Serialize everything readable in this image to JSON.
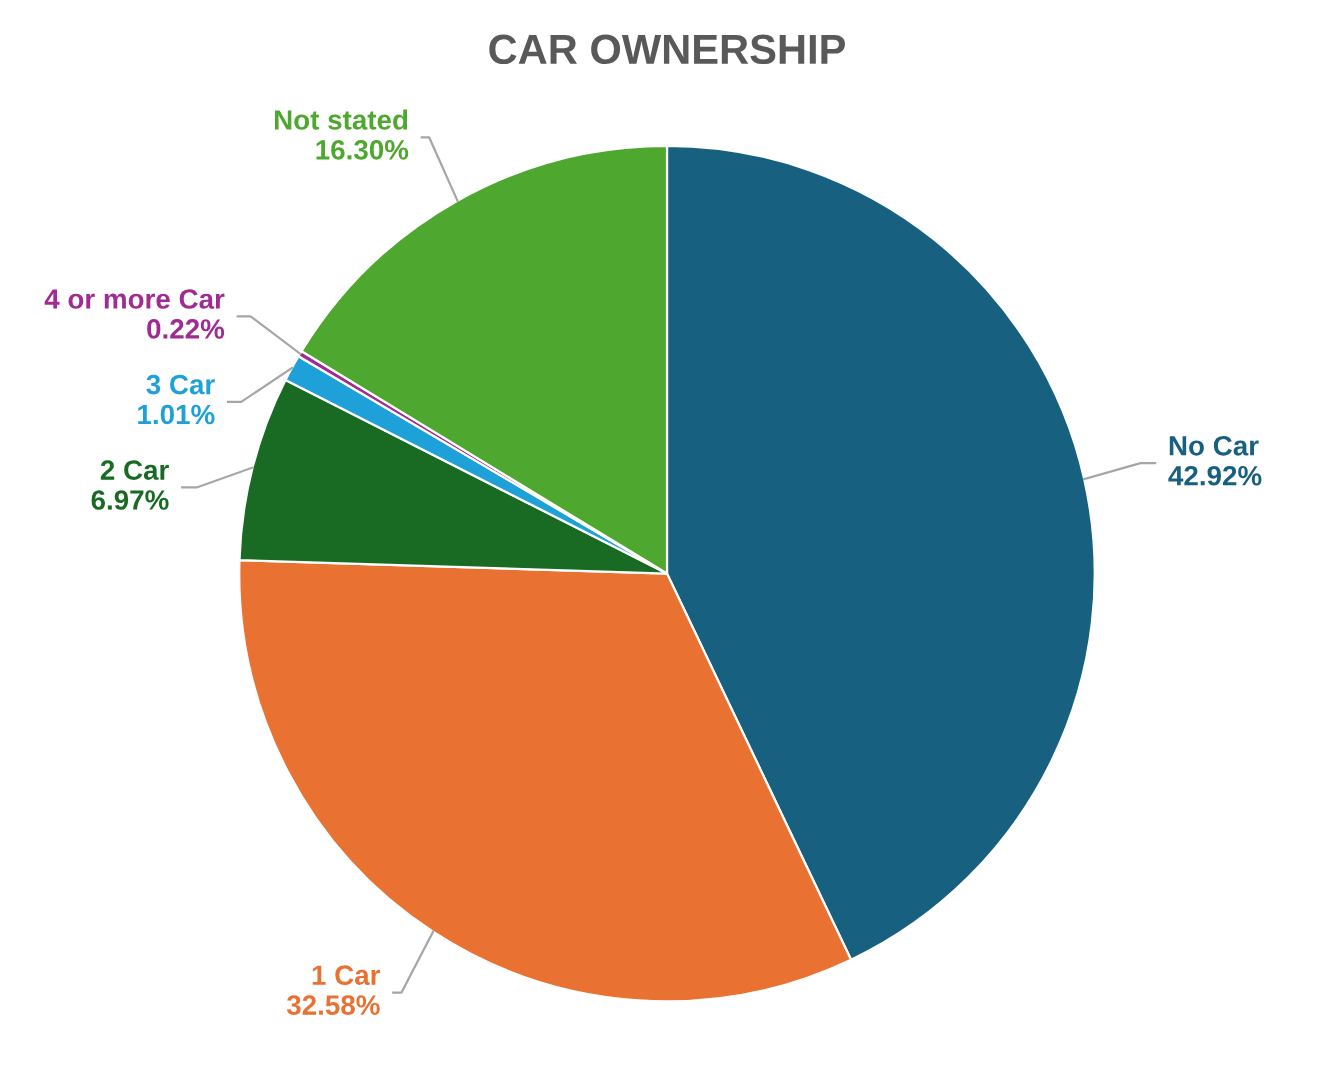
{
  "chart_data": {
    "type": "pie",
    "title": "CAR OWNERSHIP",
    "categories": [
      "No Car",
      "1 Car",
      "2 Car",
      "3 Car",
      "4 or more Car",
      "Not stated"
    ],
    "values": [
      42.92,
      32.58,
      6.97,
      1.01,
      0.22,
      16.3
    ],
    "colors": [
      "#17607f",
      "#e97132",
      "#196b24",
      "#1ea0d8",
      "#a02b93",
      "#4ea72e"
    ],
    "value_labels": [
      "42.92%",
      "32.58%",
      "6.97%",
      "1.01%",
      "0.22%",
      "16.30%"
    ],
    "legend": false
  }
}
